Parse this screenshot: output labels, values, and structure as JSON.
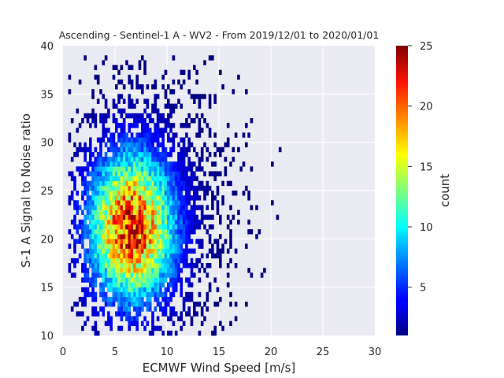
{
  "chart_data": {
    "type": "heatmap",
    "title": "Ascending - Sentinel-1 A - WV2 - From 2019/12/01 to 2020/01/01",
    "xlabel": "ECMWF Wind Speed [m/s]",
    "ylabel": "S-1 A Signal to Noise ratio",
    "colorbar_label": "count",
    "xlim": [
      0,
      30
    ],
    "ylim": [
      10,
      40
    ],
    "xticks": [
      0,
      5,
      10,
      15,
      20,
      25,
      30
    ],
    "yticks": [
      10,
      15,
      20,
      25,
      30,
      35,
      40
    ],
    "colorbar_range": [
      1,
      25
    ],
    "colorbar_ticks": [
      5,
      10,
      15,
      20,
      25
    ],
    "colormap": "jet",
    "background_color": "#eaeaf2",
    "grid": true,
    "bin_width": [
      0.25,
      0.5
    ],
    "density_description": "counts peak around wind speed 6-7 m/s and SNR 19-22, max about 25",
    "peak": {
      "x": 6.5,
      "y": 21,
      "count": 25
    }
  }
}
